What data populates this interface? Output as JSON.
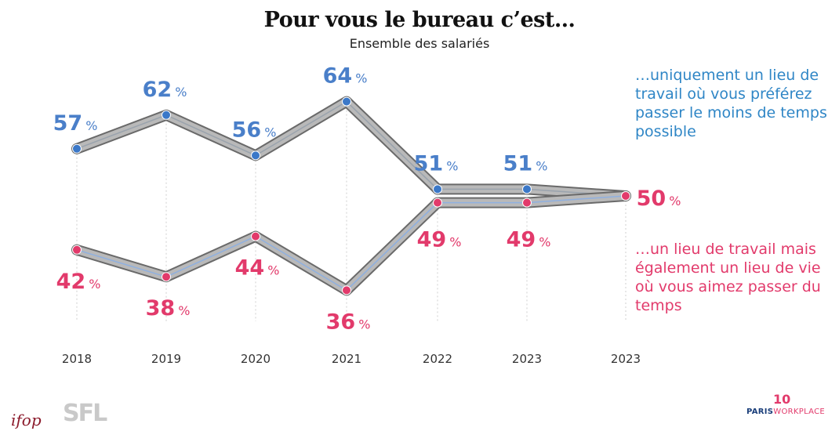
{
  "header": {
    "title": "Pour vous le bureau c’est…",
    "subtitle": "Ensemble des salariés"
  },
  "legend": {
    "series_a": "…uniquement un lieu de travail où vous préférez passer le moins de temps possible",
    "series_b": "…un lieu de travail mais également un lieu de vie où vous aimez passer du temps"
  },
  "colors": {
    "series_a": "#3b78c8",
    "series_b": "#e23a6b",
    "label_a": "#4a7fc9",
    "label_b": "#e23a6b",
    "ribbon": "#b9b9b9",
    "ribbon_edge": "#6a6a6a"
  },
  "logos": {
    "ifop": "ifop",
    "sfl": "SFL",
    "pw_brand": "PARIS",
    "pw_brand2": "WORKPLACE",
    "pw_mark": "10"
  },
  "chart_data": {
    "type": "line",
    "categories": [
      "2018",
      "2019",
      "2020",
      "2021",
      "2022",
      "2023",
      "2023"
    ],
    "series": [
      {
        "values": [
          57,
          62,
          56,
          64,
          51,
          51,
          50
        ]
      },
      {
        "values": [
          42,
          38,
          44,
          36,
          49,
          49,
          50
        ]
      }
    ],
    "value_suffix": "%",
    "end_label": "50",
    "ylim": [
      30,
      70
    ],
    "grid": false
  }
}
